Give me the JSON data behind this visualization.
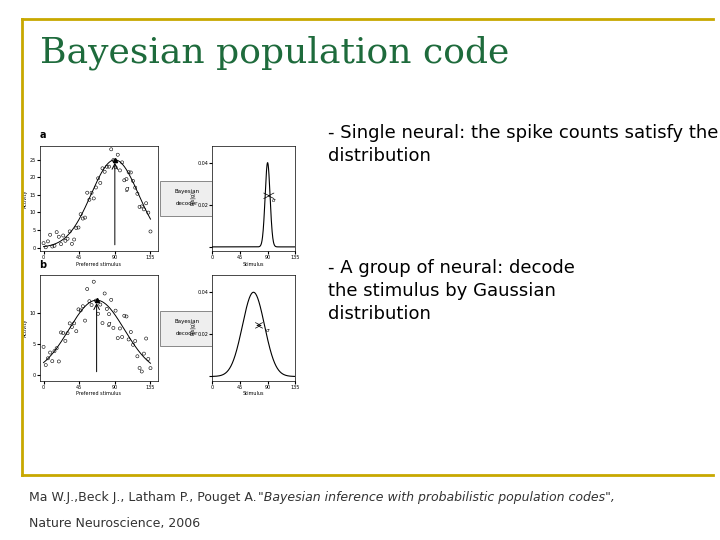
{
  "title": "Bayesian population code",
  "title_color": "#1E6B3C",
  "title_fontsize": 26,
  "bg_color": "#FFFFFF",
  "border_color": "#C8A800",
  "bullet1_line1": "- Single neural: the spike counts satisfy the Poisson",
  "bullet1_line2": "distribution",
  "bullet2_line1": "- A group of neural: decode",
  "bullet2_line2": "the stimulus by Gaussian",
  "bullet2_line3": "distribution",
  "bullet_fontsize": 13,
  "footer_normal": "Ma W.J.,Beck J., Latham P., Pouget A. ",
  "footer_italic": "\"Bayesian inference with probabilistic population codes\",",
  "footer_line2": "Nature Neuroscience, 2006",
  "footer_fontsize": 9,
  "footer_color": "#333333"
}
